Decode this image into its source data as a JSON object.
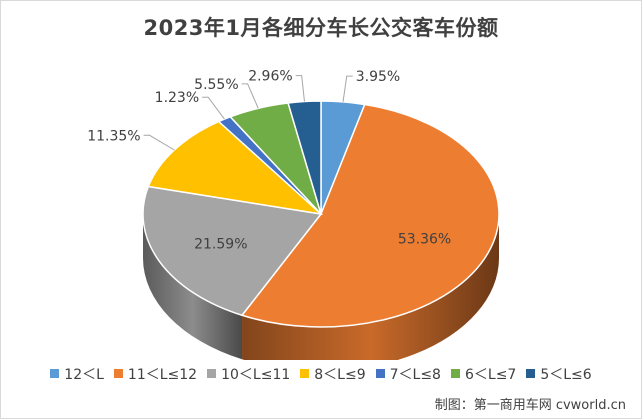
{
  "chart_data": {
    "type": "pie",
    "title": "2023年1月各细分车长公交客车份额",
    "slices": [
      {
        "name": "12＜L",
        "value": 3.95,
        "label": "3.95%",
        "color": "#5B9BD5"
      },
      {
        "name": "11＜L≤12",
        "value": 53.36,
        "label": "53.36%",
        "color": "#ED7D31"
      },
      {
        "name": "10＜L≤11",
        "value": 21.59,
        "label": "21.59%",
        "color": "#A5A5A5"
      },
      {
        "name": "8＜L≤9",
        "value": 11.35,
        "label": "11.35%",
        "color": "#FFC000"
      },
      {
        "name": "7＜L≤8",
        "value": 1.23,
        "label": "1.23%",
        "color": "#4472C4"
      },
      {
        "name": "6＜L≤7",
        "value": 5.55,
        "label": "5.55%",
        "color": "#70AD47"
      },
      {
        "name": "5＜L≤6",
        "value": 2.96,
        "label": "2.96%",
        "color": "#255E91"
      }
    ],
    "legend_position": "bottom",
    "style": "3d-pie"
  },
  "footer": "制图：第一商用车网 cvworld.cn"
}
